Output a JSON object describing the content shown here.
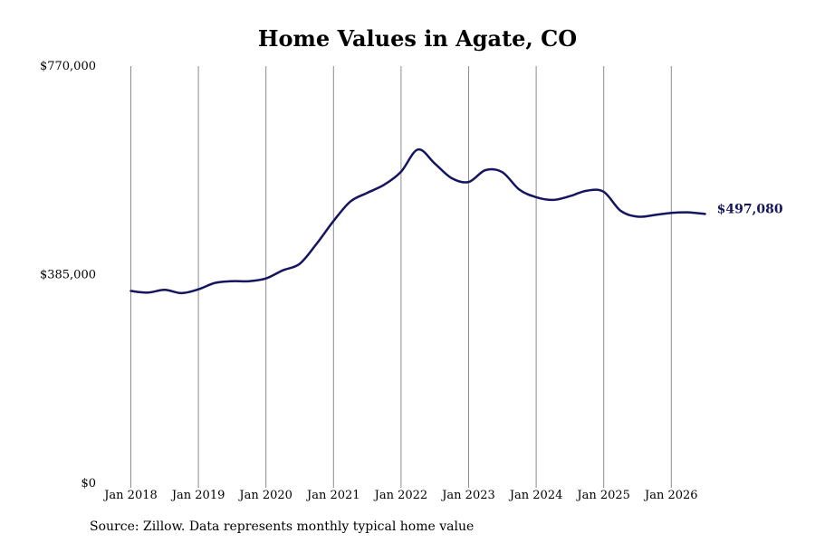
{
  "chart_data": {
    "type": "line",
    "title": "Home Values in Agate, CO",
    "source": "Source: Zillow. Data represents monthly typical home value",
    "ylim": [
      0,
      770000
    ],
    "yticks": [
      {
        "value": 0,
        "label": "$0"
      },
      {
        "value": 385000,
        "label": "$385,000"
      },
      {
        "value": 770000,
        "label": "$770,000"
      }
    ],
    "xlim": [
      "2018-01",
      "2026-09"
    ],
    "xticks": [
      {
        "value": "2018-01",
        "label": "Jan 2018"
      },
      {
        "value": "2019-01",
        "label": "Jan 2019"
      },
      {
        "value": "2020-01",
        "label": "Jan 2020"
      },
      {
        "value": "2021-01",
        "label": "Jan 2021"
      },
      {
        "value": "2022-01",
        "label": "Jan 2022"
      },
      {
        "value": "2023-01",
        "label": "Jan 2023"
      },
      {
        "value": "2024-01",
        "label": "Jan 2024"
      },
      {
        "value": "2025-01",
        "label": "Jan 2025"
      },
      {
        "value": "2026-01",
        "label": "Jan 2026"
      }
    ],
    "grid": "vertical",
    "line_color": "#15155f",
    "end_label": "$497,080",
    "series": [
      {
        "x": [
          "2018-01",
          "2018-04",
          "2018-07",
          "2018-10",
          "2019-01",
          "2019-04",
          "2019-07",
          "2019-10",
          "2020-01",
          "2020-04",
          "2020-07",
          "2020-10",
          "2021-01",
          "2021-04",
          "2021-07",
          "2021-10",
          "2022-01",
          "2022-04",
          "2022-07",
          "2022-10",
          "2023-01",
          "2023-04",
          "2023-07",
          "2023-10",
          "2024-01",
          "2024-04",
          "2024-07",
          "2024-10",
          "2025-01",
          "2025-04",
          "2025-07",
          "2025-10",
          "2026-01",
          "2026-04",
          "2026-07"
        ],
        "y": [
          355000,
          352000,
          357000,
          351000,
          358000,
          370000,
          373000,
          373000,
          378000,
          393000,
          405000,
          442000,
          484000,
          520000,
          536000,
          551000,
          575000,
          616000,
          590000,
          563000,
          556000,
          578000,
          574000,
          542000,
          528000,
          523000,
          530000,
          540000,
          538000,
          503000,
          492000,
          495000,
          499000,
          500000,
          497080
        ]
      }
    ]
  }
}
